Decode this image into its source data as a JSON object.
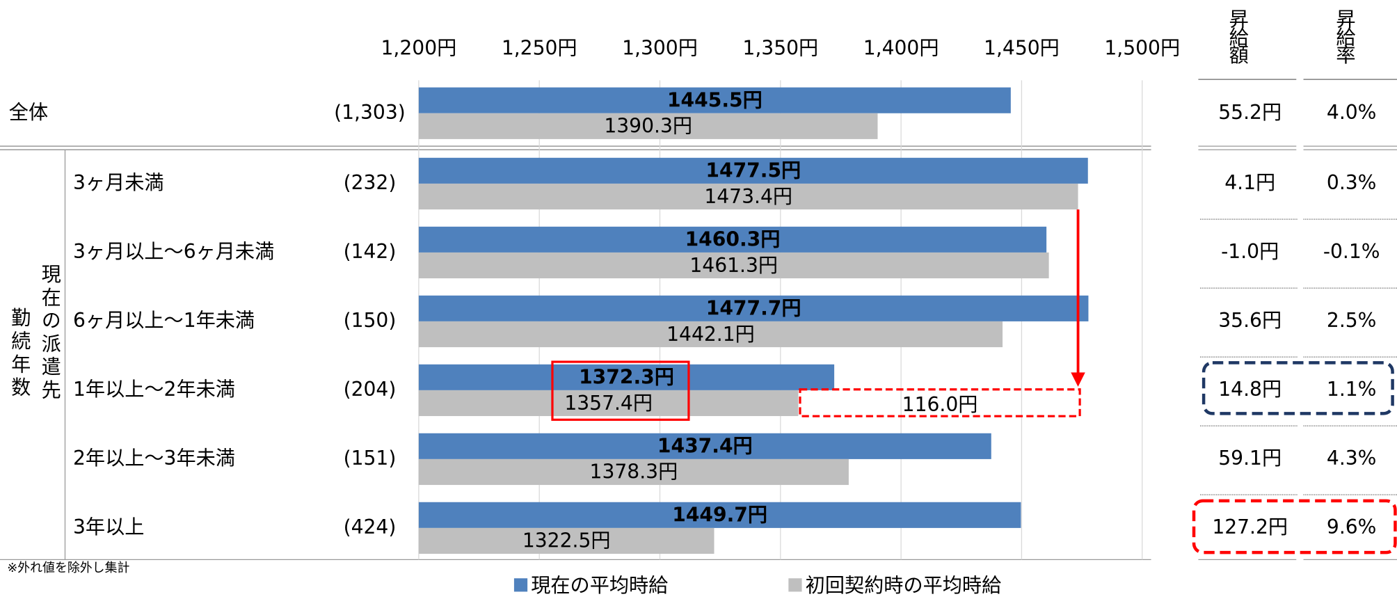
{
  "chart_data": {
    "type": "bar",
    "orientation": "horizontal",
    "categories": [
      "全体",
      "3ヶ月未満",
      "3ヶ月以上～6ヶ月未満",
      "6ヶ月以上～1年未満",
      "1年以上～2年未満",
      "2年以上～3年未満",
      "3年以上"
    ],
    "counts": [
      "(1,303)",
      "(232)",
      "(142)",
      "(150)",
      "(204)",
      "(151)",
      "(424)"
    ],
    "group_label": [
      "現在の派遣先",
      "勤続年数"
    ],
    "series": [
      {
        "name": "現在の平均時給",
        "color": "#4f81bd",
        "values": [
          1445.5,
          1477.5,
          1460.3,
          1477.7,
          1372.3,
          1437.4,
          1449.7
        ],
        "value_labels": [
          "1445.5円",
          "1477.5円",
          "1460.3円",
          "1477.7円",
          "1372.3円",
          "1437.4円",
          "1449.7円"
        ]
      },
      {
        "name": "初回契約時の平均時給",
        "color": "#bfbfbf",
        "values": [
          1390.3,
          1473.4,
          1461.3,
          1442.1,
          1357.4,
          1378.3,
          1322.5
        ],
        "value_labels": [
          "1390.3円",
          "1473.4円",
          "1461.3円",
          "1442.1円",
          "1357.4円",
          "1378.3円",
          "1322.5円"
        ]
      }
    ],
    "xlim": [
      1200,
      1500
    ],
    "xticks": [
      {
        "value": 1200,
        "label": "1,200円"
      },
      {
        "value": 1250,
        "label": "1,250円"
      },
      {
        "value": 1300,
        "label": "1,300円"
      },
      {
        "value": 1350,
        "label": "1,350円"
      },
      {
        "value": 1400,
        "label": "1,400円"
      },
      {
        "value": 1450,
        "label": "1,450円"
      },
      {
        "value": 1500,
        "label": "1,500円"
      }
    ],
    "grid": true,
    "raise_amount": {
      "header": "昇給額",
      "values": [
        55.2,
        4.1,
        -1.0,
        35.6,
        14.8,
        59.1,
        127.2
      ],
      "value_labels": [
        "55.2円",
        "4.1円",
        "-1.0円",
        "35.6円",
        "14.8円",
        "59.1円",
        "127.2円"
      ]
    },
    "raise_rate": {
      "header": "昇給率",
      "values": [
        4.0,
        0.3,
        -0.1,
        2.5,
        1.1,
        4.3,
        9.6
      ],
      "value_labels": [
        "4.0%",
        "0.3%",
        "-0.1%",
        "2.5%",
        "1.1%",
        "4.3%",
        "9.6%"
      ]
    },
    "annotation": "116.0円",
    "footnote": "※外れ値を除外し集計"
  }
}
